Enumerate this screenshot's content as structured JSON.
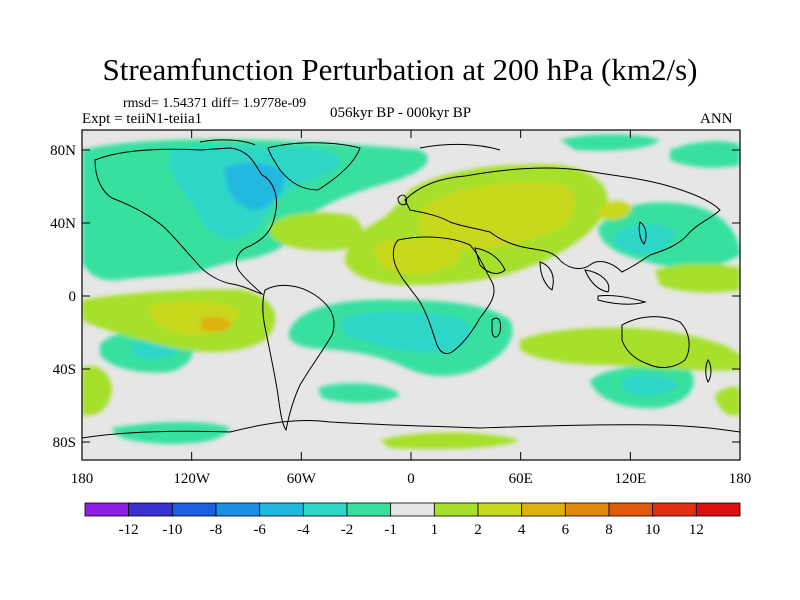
{
  "title": "Streamfunction Perturbation at 200 hPa (km2/s)",
  "stats": "rmsd= 1.54371 diff= 1.9778e-09",
  "experiment": "Expt = teiiN1-teiia1",
  "period": "056kyr BP - 000kyr BP",
  "season": "ANN",
  "y_ticks": [
    "80N",
    "40N",
    "0",
    "40S",
    "80S"
  ],
  "x_ticks": [
    "180",
    "120W",
    "60W",
    "0",
    "60E",
    "120E",
    "180"
  ],
  "colorbar": {
    "labels": [
      "-12",
      "-10",
      "-8",
      "-6",
      "-4",
      "-2",
      "-1",
      "1",
      "2",
      "4",
      "6",
      "8",
      "10",
      "12"
    ],
    "colors": [
      "#8c1fe6",
      "#3a2fd0",
      "#1c5ee0",
      "#1b8fe6",
      "#20b8e0",
      "#2ed6c8",
      "#38e0a0",
      "#e6e6e6",
      "#a6e02a",
      "#c8d81c",
      "#e0b010",
      "#e08a0c",
      "#e05a0a",
      "#e03010",
      "#d81010"
    ]
  }
}
